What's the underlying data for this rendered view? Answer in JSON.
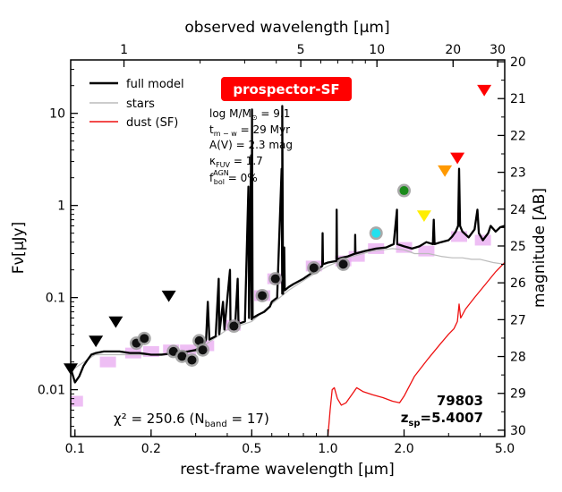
{
  "chart_data": {
    "type": "scatter",
    "xlabel": "rest-frame wavelength [μm]",
    "xlabel_top": "observed wavelength [μm]",
    "ylabel": "Fν[μJy]",
    "ylabel_right": "magnitude [AB]",
    "xscale": "log",
    "yscale": "log",
    "xlim": [
      0.0962,
      5.0
    ],
    "ylim": [
      0.0031,
      38
    ],
    "redshift": 5.4007,
    "x_ticks": [
      {
        "value": 0.1,
        "label": "0.1"
      },
      {
        "value": 0.2,
        "label": "0.2"
      },
      {
        "value": 0.5,
        "label": "0.5"
      },
      {
        "value": 1.0,
        "label": "1.0"
      },
      {
        "value": 2.0,
        "label": "2.0"
      },
      {
        "value": 5.0,
        "label": "5.0"
      }
    ],
    "x_ticks_top": [
      {
        "value": 1,
        "label": "1"
      },
      {
        "value": 5,
        "label": "5"
      },
      {
        "value": 10,
        "label": "10"
      },
      {
        "value": 20,
        "label": "20"
      },
      {
        "value": 30,
        "label": "30"
      }
    ],
    "y_ticks": [
      {
        "value": 10,
        "label": "10"
      },
      {
        "value": 1,
        "label": "1"
      },
      {
        "value": 0.1,
        "label": "0.1"
      },
      {
        "value": 0.01,
        "label": "0.01"
      }
    ],
    "mag_ticks": [
      {
        "value": 20,
        "label": "20"
      },
      {
        "value": 21,
        "label": "21"
      },
      {
        "value": 22,
        "label": "22"
      },
      {
        "value": 23,
        "label": "23"
      },
      {
        "value": 24,
        "label": "24"
      },
      {
        "value": 25,
        "label": "25"
      },
      {
        "value": 26,
        "label": "26"
      },
      {
        "value": 27,
        "label": "27"
      },
      {
        "value": 28,
        "label": "28"
      },
      {
        "value": 29,
        "label": "29"
      },
      {
        "value": 30,
        "label": "30"
      }
    ],
    "legend": {
      "placement": "upper-left",
      "entries": [
        {
          "label": "full model",
          "color": "#000000"
        },
        {
          "label": "stars",
          "color": "#bbbbbb"
        },
        {
          "label": "dust (SF)",
          "color": "#ee1111"
        }
      ]
    },
    "badge": {
      "text": "prospector-SF",
      "color": "#ff0000"
    },
    "params": [
      {
        "label": "log M/M",
        "sub": "⊙",
        "value": " = 9.1"
      },
      {
        "label": "t",
        "sub": "m − w",
        "value": " = 29 Myr"
      },
      {
        "label": "A(V) = 2.3 mag",
        "sub": "",
        "value": ""
      },
      {
        "label": "κ",
        "sub": "FUV",
        "value": " = 1.7"
      },
      {
        "label": "f",
        "sub": "bol",
        "sup": "AGN",
        "value": " = 0%"
      }
    ],
    "chi2_text": "χ² = 250.6 (N",
    "chi2_sub": "band",
    "chi2_close": " = 17)",
    "object_id": "79803",
    "z_label": "z",
    "z_sub": "sp",
    "z_value": "=5.4007",
    "series": [
      {
        "name": "full model",
        "color": "#000000",
        "points": [
          [
            0.0962,
            0.017
          ],
          [
            0.1,
            0.012
          ],
          [
            0.104,
            0.014
          ],
          [
            0.108,
            0.018
          ],
          [
            0.112,
            0.021
          ],
          [
            0.116,
            0.024
          ],
          [
            0.121,
            0.025
          ],
          [
            0.13,
            0.026
          ],
          [
            0.14,
            0.026
          ],
          [
            0.15,
            0.026
          ],
          [
            0.165,
            0.025
          ],
          [
            0.18,
            0.025
          ],
          [
            0.2,
            0.024
          ],
          [
            0.22,
            0.024
          ],
          [
            0.25,
            0.025
          ],
          [
            0.28,
            0.026
          ],
          [
            0.3,
            0.027
          ],
          [
            0.32,
            0.03
          ],
          [
            0.33,
            0.035
          ],
          [
            0.335,
            0.09
          ],
          [
            0.34,
            0.035
          ],
          [
            0.36,
            0.038
          ],
          [
            0.37,
            0.16
          ],
          [
            0.372,
            0.04
          ],
          [
            0.385,
            0.09
          ],
          [
            0.39,
            0.045
          ],
          [
            0.41,
            0.2
          ],
          [
            0.412,
            0.047
          ],
          [
            0.43,
            0.05
          ],
          [
            0.44,
            0.16
          ],
          [
            0.443,
            0.052
          ],
          [
            0.47,
            0.055
          ],
          [
            0.485,
            1.6
          ],
          [
            0.488,
            0.06
          ],
          [
            0.497,
            3.5
          ],
          [
            0.5,
            0.058
          ],
          [
            0.501,
            11
          ],
          [
            0.504,
            0.06
          ],
          [
            0.53,
            0.065
          ],
          [
            0.56,
            0.07
          ],
          [
            0.59,
            0.08
          ],
          [
            0.6,
            0.09
          ],
          [
            0.63,
            0.1
          ],
          [
            0.656,
            2.5
          ],
          [
            0.66,
            0.11
          ],
          [
            0.66,
            12
          ],
          [
            0.665,
            0.11
          ],
          [
            0.672,
            0.35
          ],
          [
            0.675,
            0.12
          ],
          [
            0.7,
            0.13
          ],
          [
            0.73,
            0.14
          ],
          [
            0.8,
            0.16
          ],
          [
            0.85,
            0.18
          ],
          [
            0.9,
            0.2
          ],
          [
            0.95,
            0.22
          ],
          [
            0.953,
            0.5
          ],
          [
            0.956,
            0.23
          ],
          [
            1.0,
            0.24
          ],
          [
            1.08,
            0.25
          ],
          [
            1.083,
            0.9
          ],
          [
            1.086,
            0.26
          ],
          [
            1.13,
            0.27
          ],
          [
            1.2,
            0.28
          ],
          [
            1.28,
            0.3
          ],
          [
            1.282,
            0.48
          ],
          [
            1.285,
            0.3
          ],
          [
            1.4,
            0.32
          ],
          [
            1.55,
            0.34
          ],
          [
            1.7,
            0.35
          ],
          [
            1.82,
            0.38
          ],
          [
            1.875,
            0.9
          ],
          [
            1.88,
            0.38
          ],
          [
            2.0,
            0.36
          ],
          [
            2.15,
            0.34
          ],
          [
            2.3,
            0.36
          ],
          [
            2.45,
            0.4
          ],
          [
            2.6,
            0.38
          ],
          [
            2.62,
            0.7
          ],
          [
            2.64,
            0.38
          ],
          [
            2.8,
            0.4
          ],
          [
            3.0,
            0.42
          ],
          [
            3.1,
            0.46
          ],
          [
            3.2,
            0.52
          ],
          [
            3.27,
            0.6
          ],
          [
            3.3,
            2.5
          ],
          [
            3.33,
            0.6
          ],
          [
            3.4,
            0.52
          ],
          [
            3.6,
            0.45
          ],
          [
            3.8,
            0.55
          ],
          [
            3.9,
            0.9
          ],
          [
            3.95,
            0.5
          ],
          [
            4.1,
            0.42
          ],
          [
            4.3,
            0.5
          ],
          [
            4.4,
            0.6
          ],
          [
            4.6,
            0.52
          ],
          [
            4.8,
            0.58
          ],
          [
            5.0,
            0.6
          ]
        ]
      },
      {
        "name": "stars",
        "color": "#bbbbbb",
        "points": [
          [
            0.0962,
            0.016
          ],
          [
            0.12,
            0.024
          ],
          [
            0.2,
            0.024
          ],
          [
            0.3,
            0.026
          ],
          [
            0.4,
            0.045
          ],
          [
            0.5,
            0.055
          ],
          [
            0.6,
            0.085
          ],
          [
            0.7,
            0.12
          ],
          [
            0.85,
            0.17
          ],
          [
            1.0,
            0.22
          ],
          [
            1.2,
            0.27
          ],
          [
            1.5,
            0.32
          ],
          [
            1.8,
            0.34
          ],
          [
            2.0,
            0.33
          ],
          [
            2.2,
            0.3
          ],
          [
            2.5,
            0.3
          ],
          [
            2.8,
            0.28
          ],
          [
            3.1,
            0.27
          ],
          [
            3.4,
            0.27
          ],
          [
            3.7,
            0.26
          ],
          [
            4.0,
            0.26
          ],
          [
            4.5,
            0.24
          ],
          [
            5.0,
            0.23
          ]
        ]
      },
      {
        "name": "dust (SF)",
        "color": "#ee1111",
        "points": [
          [
            1.0,
            0.0031
          ],
          [
            1.02,
            0.006
          ],
          [
            1.04,
            0.01
          ],
          [
            1.06,
            0.0105
          ],
          [
            1.09,
            0.008
          ],
          [
            1.13,
            0.0068
          ],
          [
            1.18,
            0.0072
          ],
          [
            1.25,
            0.009
          ],
          [
            1.3,
            0.0105
          ],
          [
            1.38,
            0.0095
          ],
          [
            1.5,
            0.0088
          ],
          [
            1.65,
            0.0082
          ],
          [
            1.8,
            0.0075
          ],
          [
            1.92,
            0.0072
          ],
          [
            2.0,
            0.0085
          ],
          [
            2.2,
            0.014
          ],
          [
            2.5,
            0.022
          ],
          [
            2.8,
            0.032
          ],
          [
            3.0,
            0.04
          ],
          [
            3.15,
            0.046
          ],
          [
            3.25,
            0.055
          ],
          [
            3.3,
            0.085
          ],
          [
            3.35,
            0.06
          ],
          [
            3.5,
            0.075
          ],
          [
            3.8,
            0.1
          ],
          [
            4.2,
            0.14
          ],
          [
            4.6,
            0.19
          ],
          [
            5.0,
            0.24
          ]
        ]
      }
    ],
    "photometry": [
      {
        "x": 0.175,
        "y": 0.032
      },
      {
        "x": 0.188,
        "y": 0.036
      },
      {
        "x": 0.245,
        "y": 0.026
      },
      {
        "x": 0.265,
        "y": 0.023
      },
      {
        "x": 0.29,
        "y": 0.021
      },
      {
        "x": 0.31,
        "y": 0.034
      },
      {
        "x": 0.32,
        "y": 0.027
      },
      {
        "x": 0.425,
        "y": 0.049
      },
      {
        "x": 0.55,
        "y": 0.105
      },
      {
        "x": 0.62,
        "y": 0.16
      },
      {
        "x": 0.88,
        "y": 0.21
      },
      {
        "x": 1.15,
        "y": 0.23
      },
      {
        "x": 1.55,
        "y": 0.5,
        "color": "#22e0ee"
      },
      {
        "x": 2.0,
        "y": 1.45,
        "color": "#1a8a1a"
      }
    ],
    "model_photometry": [
      {
        "x": 0.1,
        "y": 0.0075
      },
      {
        "x": 0.135,
        "y": 0.02
      },
      {
        "x": 0.17,
        "y": 0.025
      },
      {
        "x": 0.2,
        "y": 0.026
      },
      {
        "x": 0.24,
        "y": 0.027
      },
      {
        "x": 0.28,
        "y": 0.027
      },
      {
        "x": 0.33,
        "y": 0.03
      },
      {
        "x": 0.42,
        "y": 0.05
      },
      {
        "x": 0.55,
        "y": 0.105
      },
      {
        "x": 0.62,
        "y": 0.16
      },
      {
        "x": 0.88,
        "y": 0.22
      },
      {
        "x": 1.15,
        "y": 0.25
      },
      {
        "x": 1.3,
        "y": 0.28
      },
      {
        "x": 1.55,
        "y": 0.34
      },
      {
        "x": 2.0,
        "y": 0.35
      },
      {
        "x": 2.45,
        "y": 0.32
      },
      {
        "x": 3.3,
        "y": 0.46
      },
      {
        "x": 4.1,
        "y": 0.42
      }
    ],
    "upper_limits": [
      {
        "x": 0.0962,
        "y": 0.017,
        "color": "#000000"
      },
      {
        "x": 0.121,
        "y": 0.034,
        "color": "#000000"
      },
      {
        "x": 0.145,
        "y": 0.055,
        "color": "#000000"
      },
      {
        "x": 0.235,
        "y": 0.105,
        "color": "#000000"
      },
      {
        "x": 2.4,
        "y": 0.78,
        "color": "#ffee00"
      },
      {
        "x": 2.9,
        "y": 2.4,
        "color": "#ff9900"
      },
      {
        "x": 3.25,
        "y": 3.3,
        "color": "#ff0000"
      },
      {
        "x": 4.15,
        "y": 18.0,
        "color": "#ff0000"
      }
    ]
  }
}
